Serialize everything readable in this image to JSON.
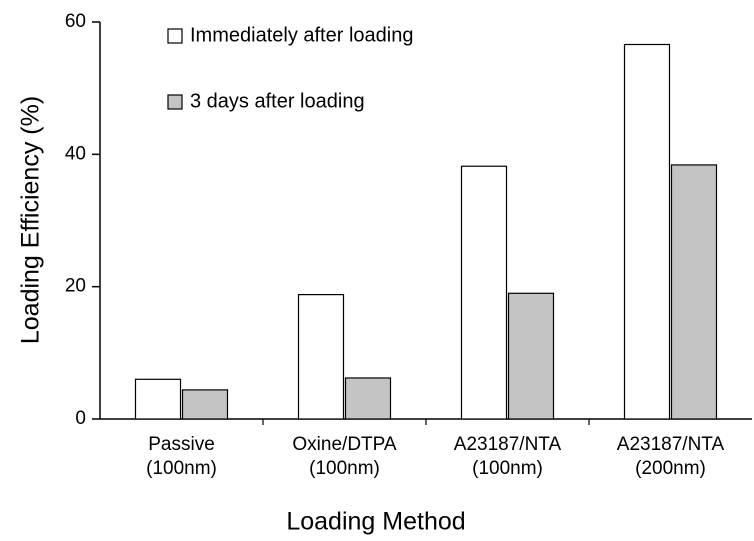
{
  "chart_data": {
    "type": "bar",
    "x_label": "Loading Method",
    "y_label": "Loading Efficiency (%)",
    "categories": [
      [
        "Passive",
        "(100nm)"
      ],
      [
        "Oxine/DTPA",
        "(100nm)"
      ],
      [
        "A23187/NTA",
        "(100nm)"
      ],
      [
        "A23187/NTA",
        "(200nm)"
      ]
    ],
    "series": [
      {
        "name": "Immediately after loading",
        "color": "#ffffff",
        "values": [
          6,
          18.8,
          38.2,
          56.6
        ]
      },
      {
        "name": "3 days after loading",
        "color": "#c4c4c4",
        "values": [
          4.4,
          6.2,
          19,
          38.4
        ]
      }
    ],
    "ylim": [
      0,
      60
    ],
    "yticks": [
      0,
      20,
      40,
      60
    ]
  }
}
